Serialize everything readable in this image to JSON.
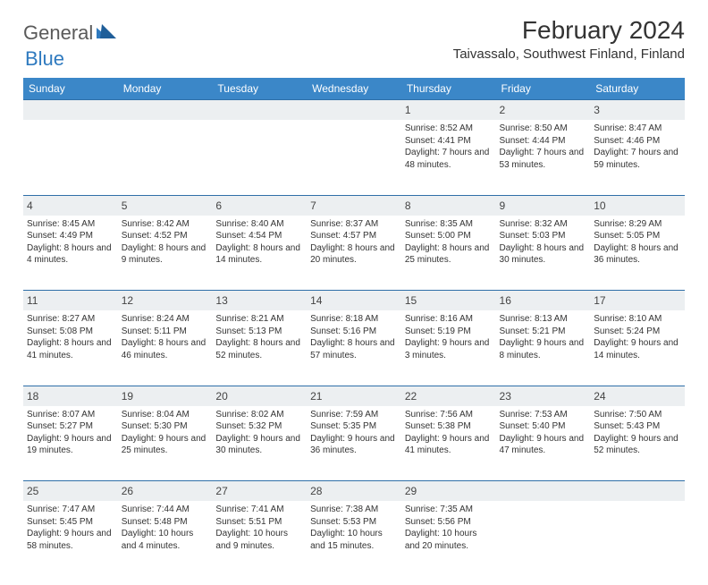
{
  "logo": {
    "text1": "General",
    "text2": "Blue"
  },
  "title": "February 2024",
  "location": "Taivassalo, Southwest Finland, Finland",
  "columns": [
    "Sunday",
    "Monday",
    "Tuesday",
    "Wednesday",
    "Thursday",
    "Friday",
    "Saturday"
  ],
  "colors": {
    "header_bg": "#3b87c8",
    "header_text": "#ffffff",
    "daynum_bg": "#eceff1",
    "rule": "#2f6fa8",
    "body_text": "#333333",
    "logo_gray": "#5a5a5a",
    "logo_blue": "#2f7abf"
  },
  "weeks": [
    [
      null,
      null,
      null,
      null,
      {
        "n": "1",
        "sr": "8:52 AM",
        "ss": "4:41 PM",
        "dl": "7 hours and 48 minutes."
      },
      {
        "n": "2",
        "sr": "8:50 AM",
        "ss": "4:44 PM",
        "dl": "7 hours and 53 minutes."
      },
      {
        "n": "3",
        "sr": "8:47 AM",
        "ss": "4:46 PM",
        "dl": "7 hours and 59 minutes."
      }
    ],
    [
      {
        "n": "4",
        "sr": "8:45 AM",
        "ss": "4:49 PM",
        "dl": "8 hours and 4 minutes."
      },
      {
        "n": "5",
        "sr": "8:42 AM",
        "ss": "4:52 PM",
        "dl": "8 hours and 9 minutes."
      },
      {
        "n": "6",
        "sr": "8:40 AM",
        "ss": "4:54 PM",
        "dl": "8 hours and 14 minutes."
      },
      {
        "n": "7",
        "sr": "8:37 AM",
        "ss": "4:57 PM",
        "dl": "8 hours and 20 minutes."
      },
      {
        "n": "8",
        "sr": "8:35 AM",
        "ss": "5:00 PM",
        "dl": "8 hours and 25 minutes."
      },
      {
        "n": "9",
        "sr": "8:32 AM",
        "ss": "5:03 PM",
        "dl": "8 hours and 30 minutes."
      },
      {
        "n": "10",
        "sr": "8:29 AM",
        "ss": "5:05 PM",
        "dl": "8 hours and 36 minutes."
      }
    ],
    [
      {
        "n": "11",
        "sr": "8:27 AM",
        "ss": "5:08 PM",
        "dl": "8 hours and 41 minutes."
      },
      {
        "n": "12",
        "sr": "8:24 AM",
        "ss": "5:11 PM",
        "dl": "8 hours and 46 minutes."
      },
      {
        "n": "13",
        "sr": "8:21 AM",
        "ss": "5:13 PM",
        "dl": "8 hours and 52 minutes."
      },
      {
        "n": "14",
        "sr": "8:18 AM",
        "ss": "5:16 PM",
        "dl": "8 hours and 57 minutes."
      },
      {
        "n": "15",
        "sr": "8:16 AM",
        "ss": "5:19 PM",
        "dl": "9 hours and 3 minutes."
      },
      {
        "n": "16",
        "sr": "8:13 AM",
        "ss": "5:21 PM",
        "dl": "9 hours and 8 minutes."
      },
      {
        "n": "17",
        "sr": "8:10 AM",
        "ss": "5:24 PM",
        "dl": "9 hours and 14 minutes."
      }
    ],
    [
      {
        "n": "18",
        "sr": "8:07 AM",
        "ss": "5:27 PM",
        "dl": "9 hours and 19 minutes."
      },
      {
        "n": "19",
        "sr": "8:04 AM",
        "ss": "5:30 PM",
        "dl": "9 hours and 25 minutes."
      },
      {
        "n": "20",
        "sr": "8:02 AM",
        "ss": "5:32 PM",
        "dl": "9 hours and 30 minutes."
      },
      {
        "n": "21",
        "sr": "7:59 AM",
        "ss": "5:35 PM",
        "dl": "9 hours and 36 minutes."
      },
      {
        "n": "22",
        "sr": "7:56 AM",
        "ss": "5:38 PM",
        "dl": "9 hours and 41 minutes."
      },
      {
        "n": "23",
        "sr": "7:53 AM",
        "ss": "5:40 PM",
        "dl": "9 hours and 47 minutes."
      },
      {
        "n": "24",
        "sr": "7:50 AM",
        "ss": "5:43 PM",
        "dl": "9 hours and 52 minutes."
      }
    ],
    [
      {
        "n": "25",
        "sr": "7:47 AM",
        "ss": "5:45 PM",
        "dl": "9 hours and 58 minutes."
      },
      {
        "n": "26",
        "sr": "7:44 AM",
        "ss": "5:48 PM",
        "dl": "10 hours and 4 minutes."
      },
      {
        "n": "27",
        "sr": "7:41 AM",
        "ss": "5:51 PM",
        "dl": "10 hours and 9 minutes."
      },
      {
        "n": "28",
        "sr": "7:38 AM",
        "ss": "5:53 PM",
        "dl": "10 hours and 15 minutes."
      },
      {
        "n": "29",
        "sr": "7:35 AM",
        "ss": "5:56 PM",
        "dl": "10 hours and 20 minutes."
      },
      null,
      null
    ]
  ],
  "labels": {
    "sunrise": "Sunrise:",
    "sunset": "Sunset:",
    "daylight": "Daylight:"
  }
}
